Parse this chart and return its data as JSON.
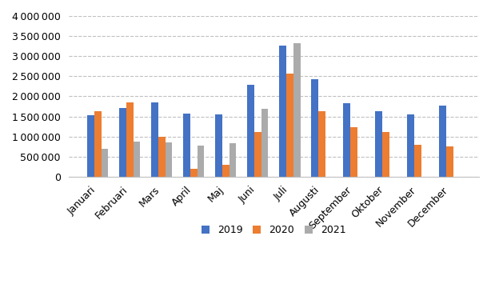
{
  "categories": [
    "Januari",
    "Februari",
    "Mars",
    "April",
    "Maj",
    "Juni",
    "Juli",
    "Augusti",
    "September",
    "Oktober",
    "November",
    "December"
  ],
  "series": {
    "2019": [
      1540000,
      1720000,
      1860000,
      1570000,
      1560000,
      2290000,
      3270000,
      2420000,
      1840000,
      1640000,
      1560000,
      1780000
    ],
    "2020": [
      1640000,
      1850000,
      1000000,
      190000,
      300000,
      1110000,
      2570000,
      1640000,
      1230000,
      1110000,
      800000,
      760000
    ],
    "2021": [
      690000,
      880000,
      850000,
      770000,
      840000,
      1700000,
      3330000,
      0,
      0,
      0,
      0,
      0
    ]
  },
  "colors": {
    "2019": "#4472C4",
    "2020": "#ED7D31",
    "2021": "#ABABAB"
  },
  "ylim": [
    0,
    4000000
  ],
  "yticks": [
    0,
    500000,
    1000000,
    1500000,
    2000000,
    2500000,
    3000000,
    3500000,
    4000000
  ],
  "background_color": "#ffffff",
  "legend_labels": [
    "2019",
    "2020",
    "2021"
  ],
  "bar_width": 0.22,
  "figsize": [
    6.14,
    3.85
  ],
  "dpi": 100
}
